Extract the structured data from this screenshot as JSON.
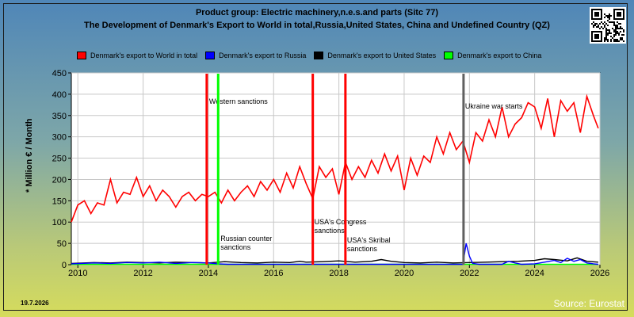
{
  "title_line1": "Product group: Electric machinery,n.e.s.and parts (Sitc 77)",
  "title_line2": "The Development of Denmark's Export to World in total,Russia,United States, China and Undefined Country (QZ)",
  "ylabel": "* Million € / Month",
  "date_stamp": "19.7.2026",
  "source": "Source: Eurostat",
  "legend": [
    {
      "label": "Denmark's export to World in total",
      "color": "#ff0000"
    },
    {
      "label": "Denmark's export to Russia",
      "color": "#0000ff"
    },
    {
      "label": "Denmark's export to United States",
      "color": "#000000"
    },
    {
      "label": "Denmark's export to China",
      "color": "#00ff00"
    }
  ],
  "chart_data": {
    "type": "line",
    "xlim": [
      2009.8,
      2026.0
    ],
    "ylim": [
      0,
      450
    ],
    "grid": true,
    "xticks": [
      2010,
      2012,
      2014,
      2016,
      2018,
      2020,
      2022,
      2024,
      2026
    ],
    "yticks": [
      0,
      50,
      100,
      150,
      200,
      250,
      300,
      350,
      400,
      450
    ],
    "series": [
      {
        "name": "Denmark's export to World in total",
        "color": "#ff0000",
        "x": [
          2009.8,
          2010.0,
          2010.2,
          2010.4,
          2010.6,
          2010.8,
          2011.0,
          2011.2,
          2011.4,
          2011.6,
          2011.8,
          2012.0,
          2012.2,
          2012.4,
          2012.6,
          2012.8,
          2013.0,
          2013.2,
          2013.4,
          2013.6,
          2013.8,
          2014.0,
          2014.2,
          2014.4,
          2014.6,
          2014.8,
          2015.0,
          2015.2,
          2015.4,
          2015.6,
          2015.8,
          2016.0,
          2016.2,
          2016.4,
          2016.6,
          2016.8,
          2017.0,
          2017.2,
          2017.4,
          2017.6,
          2017.8,
          2018.0,
          2018.2,
          2018.4,
          2018.6,
          2018.8,
          2019.0,
          2019.2,
          2019.4,
          2019.6,
          2019.8,
          2020.0,
          2020.2,
          2020.4,
          2020.6,
          2020.8,
          2021.0,
          2021.2,
          2021.4,
          2021.6,
          2021.8,
          2022.0,
          2022.2,
          2022.4,
          2022.6,
          2022.8,
          2023.0,
          2023.2,
          2023.4,
          2023.6,
          2023.8,
          2024.0,
          2024.2,
          2024.4,
          2024.6,
          2024.8,
          2025.0,
          2025.2,
          2025.4,
          2025.6,
          2025.8,
          2025.95
        ],
        "y": [
          100,
          140,
          150,
          120,
          145,
          140,
          200,
          145,
          170,
          165,
          205,
          160,
          185,
          150,
          175,
          160,
          135,
          160,
          170,
          150,
          165,
          160,
          170,
          145,
          175,
          150,
          170,
          185,
          160,
          195,
          175,
          200,
          170,
          215,
          180,
          230,
          190,
          155,
          230,
          205,
          225,
          165,
          240,
          200,
          230,
          205,
          245,
          215,
          260,
          220,
          255,
          175,
          250,
          210,
          255,
          240,
          300,
          260,
          310,
          270,
          290,
          240,
          310,
          290,
          340,
          300,
          370,
          300,
          330,
          345,
          380,
          370,
          320,
          390,
          300,
          385,
          360,
          380,
          310,
          395,
          350,
          320
        ]
      },
      {
        "name": "Denmark's export to Russia",
        "color": "#0000ff",
        "x": [
          2009.8,
          2010.5,
          2011.0,
          2011.5,
          2012.0,
          2012.5,
          2013.0,
          2013.5,
          2014.0,
          2014.3,
          2014.6,
          2015.0,
          2016.0,
          2017.0,
          2018.0,
          2019.0,
          2020.0,
          2021.0,
          2021.8,
          2021.9,
          2022.0,
          2022.1,
          2022.3,
          2023.0,
          2023.2,
          2023.4,
          2023.6,
          2024.0,
          2024.3,
          2024.6,
          2024.8,
          2025.0,
          2025.2,
          2025.4,
          2025.6,
          2025.8,
          2025.95
        ],
        "y": [
          2,
          4,
          3,
          5,
          4,
          6,
          3,
          5,
          4,
          2,
          1,
          1,
          1,
          1,
          1,
          1,
          1,
          1,
          1,
          50,
          20,
          3,
          1,
          1,
          8,
          4,
          1,
          2,
          6,
          10,
          5,
          15,
          8,
          12,
          4,
          2,
          1
        ]
      },
      {
        "name": "Denmark's export to United States",
        "color": "#000000",
        "x": [
          2009.8,
          2010.5,
          2011.0,
          2011.5,
          2012.0,
          2012.5,
          2013.0,
          2013.5,
          2014.0,
          2014.5,
          2015.0,
          2015.5,
          2016.0,
          2016.5,
          2016.8,
          2017.0,
          2017.5,
          2018.0,
          2018.5,
          2019.0,
          2019.3,
          2019.6,
          2020.0,
          2020.5,
          2021.0,
          2021.5,
          2022.0,
          2022.5,
          2023.0,
          2023.5,
          2024.0,
          2024.3,
          2024.6,
          2025.0,
          2025.3,
          2025.6,
          2025.95
        ],
        "y": [
          3,
          5,
          4,
          6,
          5,
          4,
          6,
          5,
          4,
          7,
          5,
          4,
          6,
          5,
          8,
          6,
          7,
          9,
          6,
          8,
          12,
          8,
          5,
          4,
          6,
          4,
          5,
          6,
          7,
          8,
          10,
          14,
          12,
          9,
          16,
          8,
          6
        ]
      },
      {
        "name": "Denmark's export to China",
        "color": "#00ff00",
        "x": [
          2009.8,
          2011.0,
          2012.0,
          2013.0,
          2014.0,
          2015.0,
          2016.0,
          2018.0,
          2020.0,
          2022.0,
          2024.0,
          2025.95
        ],
        "y": [
          1,
          1,
          1,
          1,
          1,
          1,
          1,
          1,
          1,
          1,
          1,
          1
        ]
      }
    ],
    "markers": [
      {
        "x": 2013.95,
        "color": "#ff0000",
        "label": "Western sanctions"
      },
      {
        "x": 2014.3,
        "color": "#00ff00",
        "label": "Russian counter sanctions"
      },
      {
        "x": 2017.2,
        "color": "#ff0000",
        "label": "USA's Congress sanctions"
      },
      {
        "x": 2018.2,
        "color": "#ff0000",
        "label": "USA's Skribal sanctions"
      },
      {
        "x": 2021.82,
        "color": "#606060",
        "label": "Ukraine war starts"
      }
    ]
  }
}
